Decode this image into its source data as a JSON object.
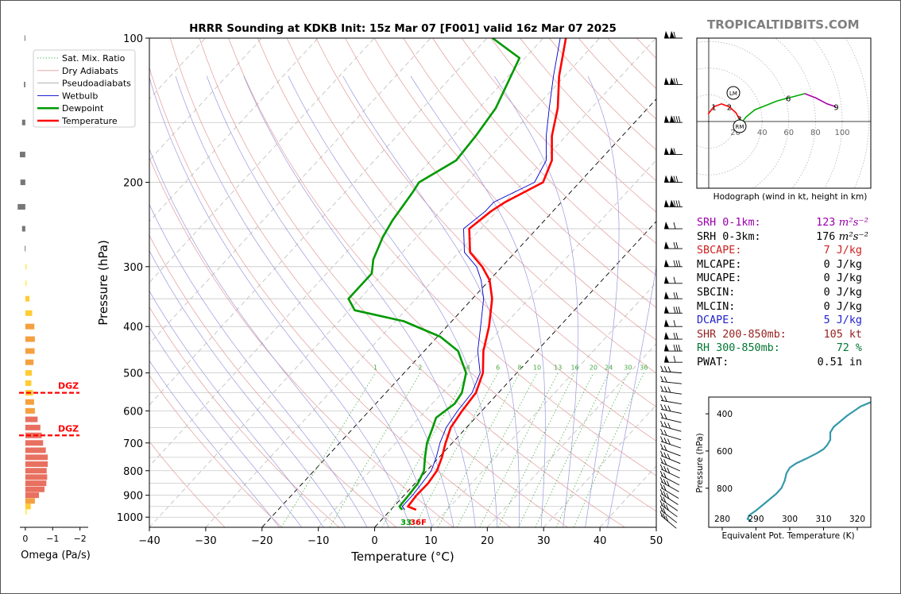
{
  "chart_data": [
    {
      "type": "line",
      "title": "HRRR Sounding at KDKB Init: 15z Mar 07 [F001] valid 16z Mar 07 2025",
      "xlabel": "Temperature (°C)",
      "ylabel": "Pressure (hPa)",
      "xlim": [
        -40,
        50
      ],
      "ylim": [
        1050,
        100
      ],
      "yscale": "log",
      "grid": true,
      "legend_position": "upper-left",
      "x_ticks": [
        -40,
        -30,
        -20,
        -10,
        0,
        10,
        20,
        30,
        40,
        50
      ],
      "y_ticks": [
        100,
        200,
        300,
        400,
        500,
        600,
        700,
        800,
        900,
        1000
      ],
      "legend": [
        "Sat. Mix. Ratio",
        "Dry Adiabats",
        "Pseudoadiabats",
        "Wetbulb",
        "Dewpoint",
        "Temperature"
      ],
      "mixing_ratio_labels": [
        "1",
        "2",
        "4",
        "6",
        "8",
        "10",
        "13",
        "16",
        "20",
        "24",
        "30",
        "36"
      ],
      "surface_label": "33",
      "surface_label_2": "36F",
      "series": [
        {
          "name": "Temperature",
          "color": "#ff0000",
          "points": [
            [
              4.5,
              965
            ],
            [
              2.5,
              950
            ],
            [
              2.2,
              900
            ],
            [
              2.3,
              850
            ],
            [
              1.8,
              800
            ],
            [
              0.5,
              750
            ],
            [
              -1.2,
              700
            ],
            [
              -2.8,
              650
            ],
            [
              -3.5,
              600
            ],
            [
              -4.0,
              550
            ],
            [
              -6,
              500
            ],
            [
              -9.5,
              450
            ],
            [
              -12.5,
              400
            ],
            [
              -16.5,
              350
            ],
            [
              -20,
              320
            ],
            [
              -23.5,
              300
            ],
            [
              -28,
              280
            ],
            [
              -32,
              250
            ],
            [
              -31,
              230
            ],
            [
              -30,
              220
            ],
            [
              -26.5,
              200
            ],
            [
              -28.5,
              180
            ],
            [
              -32.5,
              160
            ],
            [
              -36,
              140
            ],
            [
              -41,
              120
            ],
            [
              -46,
              100
            ]
          ]
        },
        {
          "name": "Dewpoint",
          "color": "#009900",
          "points": [
            [
              2.0,
              965
            ],
            [
              1.0,
              950
            ],
            [
              0.8,
              900
            ],
            [
              0.5,
              850
            ],
            [
              -0.5,
              800
            ],
            [
              -2.5,
              750
            ],
            [
              -4.5,
              700
            ],
            [
              -6,
              650
            ],
            [
              -7,
              620
            ],
            [
              -6,
              580
            ],
            [
              -6.5,
              550
            ],
            [
              -9,
              500
            ],
            [
              -14,
              450
            ],
            [
              -19.5,
              420
            ],
            [
              -28.5,
              390
            ],
            [
              -39,
              370
            ],
            [
              -42,
              350
            ],
            [
              -42,
              330
            ],
            [
              -42,
              310
            ],
            [
              -44,
              290
            ],
            [
              -46,
              260
            ],
            [
              -47,
              240
            ],
            [
              -48,
              210
            ],
            [
              -48.5,
              200
            ],
            [
              -45.5,
              180
            ],
            [
              -46,
              160
            ],
            [
              -47,
              140
            ],
            [
              -51,
              110
            ],
            [
              -59,
              100
            ]
          ]
        },
        {
          "name": "Wetbulb",
          "color": "#0000cc",
          "points": [
            [
              2.5,
              965
            ],
            [
              1.5,
              950
            ],
            [
              1.5,
              900
            ],
            [
              1.2,
              850
            ],
            [
              0.8,
              800
            ],
            [
              -0.5,
              750
            ],
            [
              -2.2,
              700
            ],
            [
              -3.6,
              650
            ],
            [
              -4.3,
              600
            ],
            [
              -4.7,
              550
            ],
            [
              -6.5,
              500
            ],
            [
              -10.5,
              450
            ],
            [
              -14,
              400
            ],
            [
              -18,
              350
            ],
            [
              -21.5,
              320
            ],
            [
              -24.5,
              300
            ],
            [
              -29,
              280
            ],
            [
              -33,
              250
            ],
            [
              -32,
              230
            ],
            [
              -32,
              220
            ],
            [
              -28,
              200
            ],
            [
              -29.5,
              180
            ],
            [
              -33.5,
              160
            ],
            [
              -37.5,
              140
            ],
            [
              -42,
              120
            ],
            [
              -47,
              100
            ]
          ]
        }
      ]
    },
    {
      "type": "bar",
      "xlabel": "Omega (Pa/s)",
      "xlim": [
        0.2,
        -2.3
      ],
      "x_ticks": [
        0,
        -1,
        -2
      ],
      "dgz_label": "DGZ",
      "dgz_pressures": [
        550,
        675
      ],
      "bars": [
        [
          100,
          0.03
        ],
        [
          125,
          0.05
        ],
        [
          150,
          0.12
        ],
        [
          175,
          0.2
        ],
        [
          200,
          0.18
        ],
        [
          225,
          0.28
        ],
        [
          250,
          0.12
        ],
        [
          275,
          0.02
        ],
        [
          300,
          -0.05
        ],
        [
          325,
          -0.05
        ],
        [
          350,
          -0.15
        ],
        [
          375,
          -0.25
        ],
        [
          400,
          -0.33
        ],
        [
          425,
          -0.35
        ],
        [
          450,
          -0.34
        ],
        [
          475,
          -0.3
        ],
        [
          500,
          -0.24
        ],
        [
          525,
          -0.22
        ],
        [
          550,
          -0.28
        ],
        [
          575,
          -0.32
        ],
        [
          600,
          -0.35
        ],
        [
          625,
          -0.45
        ],
        [
          650,
          -0.55
        ],
        [
          675,
          -0.6
        ],
        [
          700,
          -0.65
        ],
        [
          725,
          -0.75
        ],
        [
          750,
          -0.82
        ],
        [
          775,
          -0.82
        ],
        [
          800,
          -0.78
        ],
        [
          825,
          -0.8
        ],
        [
          850,
          -0.77
        ],
        [
          875,
          -0.7
        ],
        [
          900,
          -0.5
        ],
        [
          925,
          -0.35
        ],
        [
          950,
          -0.2
        ],
        [
          975,
          -0.06
        ]
      ]
    },
    {
      "type": "line",
      "title": "Hodograph (wind in kt, height in km)",
      "x_ticks": [
        20,
        40,
        60,
        80,
        100
      ],
      "height_labels": [
        "1",
        "2",
        "3",
        "6",
        "9"
      ],
      "motion_labels": [
        "LM",
        "RM"
      ],
      "points": [
        [
          3,
          5
        ],
        [
          8,
          10
        ],
        [
          15,
          12
        ],
        [
          22,
          10
        ],
        [
          28,
          6
        ],
        [
          31,
          2
        ],
        [
          32,
          -2
        ],
        [
          37,
          3
        ],
        [
          45,
          8
        ],
        [
          55,
          11
        ],
        [
          65,
          14
        ],
        [
          75,
          16
        ],
        [
          80,
          17
        ],
        [
          90,
          19
        ],
        [
          100,
          16
        ],
        [
          110,
          12
        ],
        [
          118,
          10
        ]
      ],
      "segment_colors": [
        "#ff0000",
        "#00aa00",
        "#aa00aa"
      ]
    },
    {
      "type": "line",
      "xlabel": "Equivalent Pot. Temperature (K)",
      "ylabel": "Pressure (hPa)",
      "xlim": [
        276,
        324
      ],
      "ylim": [
        1010,
        310
      ],
      "x_ticks": [
        280,
        290,
        300,
        310,
        320
      ],
      "y_ticks": [
        400,
        600,
        800
      ],
      "color": "#3399aa",
      "points": [
        [
          288.5,
          975
        ],
        [
          287.5,
          965
        ],
        [
          288,
          945
        ],
        [
          290,
          920
        ],
        [
          292,
          890
        ],
        [
          294,
          860
        ],
        [
          296,
          830
        ],
        [
          297.5,
          800
        ],
        [
          298.5,
          760
        ],
        [
          299,
          720
        ],
        [
          300,
          690
        ],
        [
          302,
          665
        ],
        [
          305,
          640
        ],
        [
          308,
          612
        ],
        [
          310,
          590
        ],
        [
          311,
          570
        ],
        [
          312,
          540
        ],
        [
          312,
          500
        ],
        [
          313,
          470
        ],
        [
          315,
          440
        ],
        [
          317,
          410
        ],
        [
          319,
          385
        ],
        [
          321,
          360
        ],
        [
          323,
          345
        ],
        [
          325,
          330
        ]
      ]
    }
  ],
  "brand": "TROPICALTIDBITS.COM",
  "params": [
    {
      "label": "SRH 0-1km:",
      "value": "123",
      "unit": "m²s⁻²",
      "color": "#9900aa"
    },
    {
      "label": "SRH 0-3km:",
      "value": "176",
      "unit": "m²s⁻²",
      "color": "#000000"
    },
    {
      "label": "SBCAPE:",
      "value": "7 J/kg",
      "unit": "",
      "color": "#cc2222"
    },
    {
      "label": "MLCAPE:",
      "value": "0 J/kg",
      "unit": "",
      "color": "#000000"
    },
    {
      "label": "MUCAPE:",
      "value": "0 J/kg",
      "unit": "",
      "color": "#000000"
    },
    {
      "label": "SBCIN:",
      "value": "0 J/kg",
      "unit": "",
      "color": "#000000"
    },
    {
      "label": "MLCIN:",
      "value": "0 J/kg",
      "unit": "",
      "color": "#000000"
    },
    {
      "label": "DCAPE:",
      "value": "5 J/kg",
      "unit": "",
      "color": "#2222cc"
    },
    {
      "label": "SHR 200-850mb:",
      "value": "105 kt",
      "unit": "",
      "color": "#992222"
    },
    {
      "label": "RH 300-850mb:",
      "value": "72 %",
      "unit": "",
      "color": "#007733"
    },
    {
      "label": "PWAT:",
      "value": "0.51 in",
      "unit": "",
      "color": "#000000"
    }
  ]
}
